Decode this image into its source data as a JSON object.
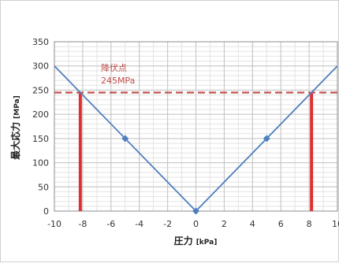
{
  "chart_data": {
    "type": "line",
    "xlabel": "圧力",
    "xlabel_unit": "[kPa]",
    "ylabel": "最大応力",
    "ylabel_unit": "[MPa]",
    "xlim": [
      -10,
      10
    ],
    "ylim": [
      0,
      350
    ],
    "x_major_ticks": [
      -10,
      -8,
      -6,
      -4,
      -2,
      0,
      2,
      4,
      6,
      8,
      10
    ],
    "y_major_ticks": [
      0,
      50,
      100,
      150,
      200,
      250,
      300,
      350
    ],
    "x_tick_labels": [
      "-10",
      "-8",
      "-6",
      "-4",
      "-2",
      "0",
      "2",
      "4",
      "6",
      "8",
      "10"
    ],
    "y_tick_labels": [
      "0",
      "50",
      "100",
      "150",
      "200",
      "250",
      "300",
      "350"
    ],
    "grid": true,
    "series": [
      {
        "x": [
          -10,
          0,
          10
        ],
        "y": [
          300,
          0,
          300
        ],
        "color": "#4f7fbd",
        "markers": [
          {
            "x": -5,
            "y": 150
          },
          {
            "x": 0,
            "y": 0
          },
          {
            "x": 5,
            "y": 150
          }
        ]
      }
    ],
    "reference_line": {
      "y": 245,
      "color": "#c0504d",
      "label_line1": "降伏点",
      "label_line2": "245MPa"
    },
    "vertical_markers": [
      {
        "x": -8.17,
        "color": "#e03030"
      },
      {
        "x": 8.17,
        "color": "#e03030"
      }
    ]
  }
}
